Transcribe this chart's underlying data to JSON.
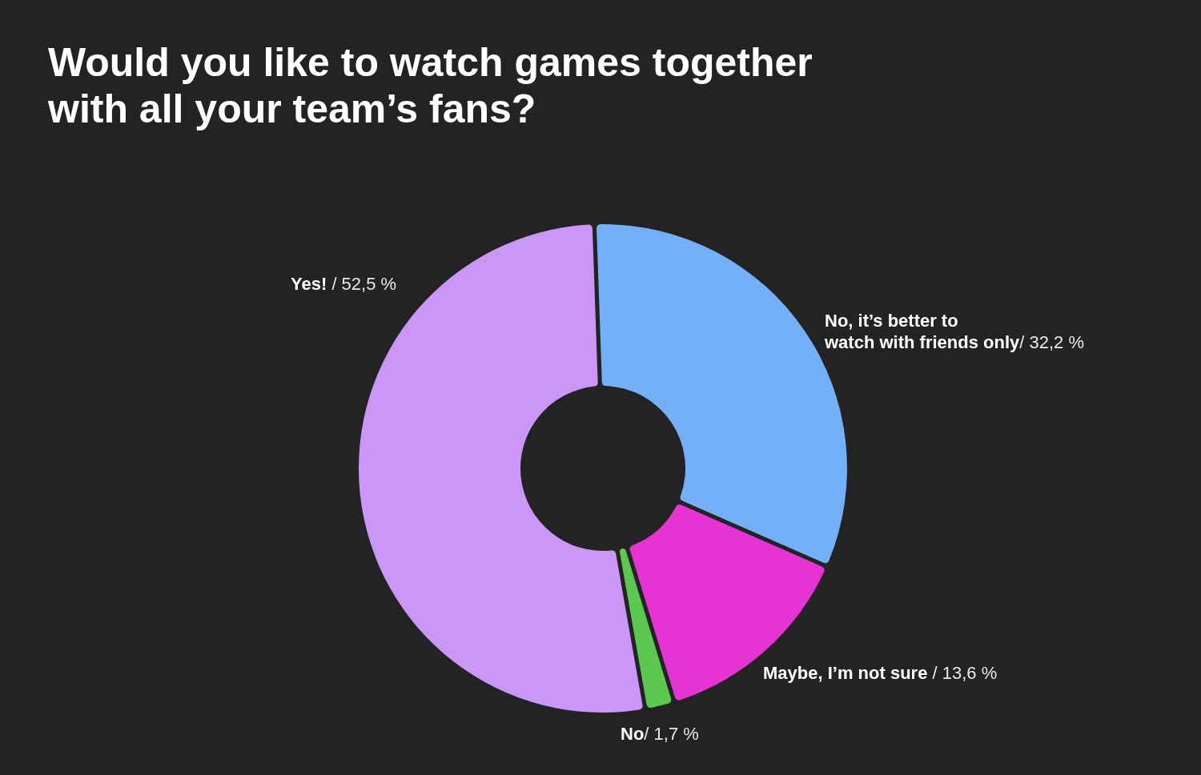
{
  "chart_data": {
    "type": "donut",
    "title": "Would you like to watch games together with all your team’s fans?",
    "categories": [
      "No, it’s better to watch with friends only",
      "Maybe, I’m not sure",
      "No",
      "Yes!"
    ],
    "values": [
      32.2,
      13.6,
      1.7,
      52.5
    ],
    "colors": [
      "#74b0f8",
      "#e533d4",
      "#5cc852",
      "#cb96f8"
    ],
    "value_labels": [
      "/ 32,2 %",
      " / 13,6 %",
      "/ 1,7 %",
      " / 52,5 %"
    ]
  }
}
